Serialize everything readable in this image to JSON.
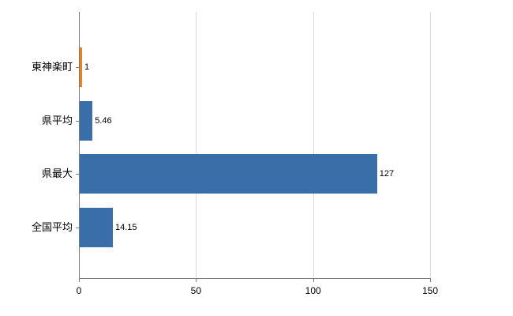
{
  "chart_data": {
    "type": "bar",
    "orientation": "horizontal",
    "title": "",
    "xlabel": "",
    "ylabel": "",
    "categories": [
      "東神楽町",
      "県平均",
      "県最大",
      "全国平均"
    ],
    "values": [
      1,
      5.46,
      127,
      14.15
    ],
    "value_labels": [
      "1",
      "5.46",
      "127",
      "14.15"
    ],
    "bar_colors": [
      "#E8821D",
      "#3A6EA8",
      "#3A6EA8",
      "#3A6EA8"
    ],
    "xlim": [
      0,
      150
    ],
    "x_ticks": [
      0,
      50,
      100,
      150
    ],
    "x_tick_labels": [
      "0",
      "50",
      "100",
      "150"
    ],
    "grid": true,
    "legend_position": "none",
    "colors": {
      "grid": "#d9d9d9",
      "axis": "#7a7a7a",
      "text": "#000000",
      "background": "#ffffff"
    }
  }
}
